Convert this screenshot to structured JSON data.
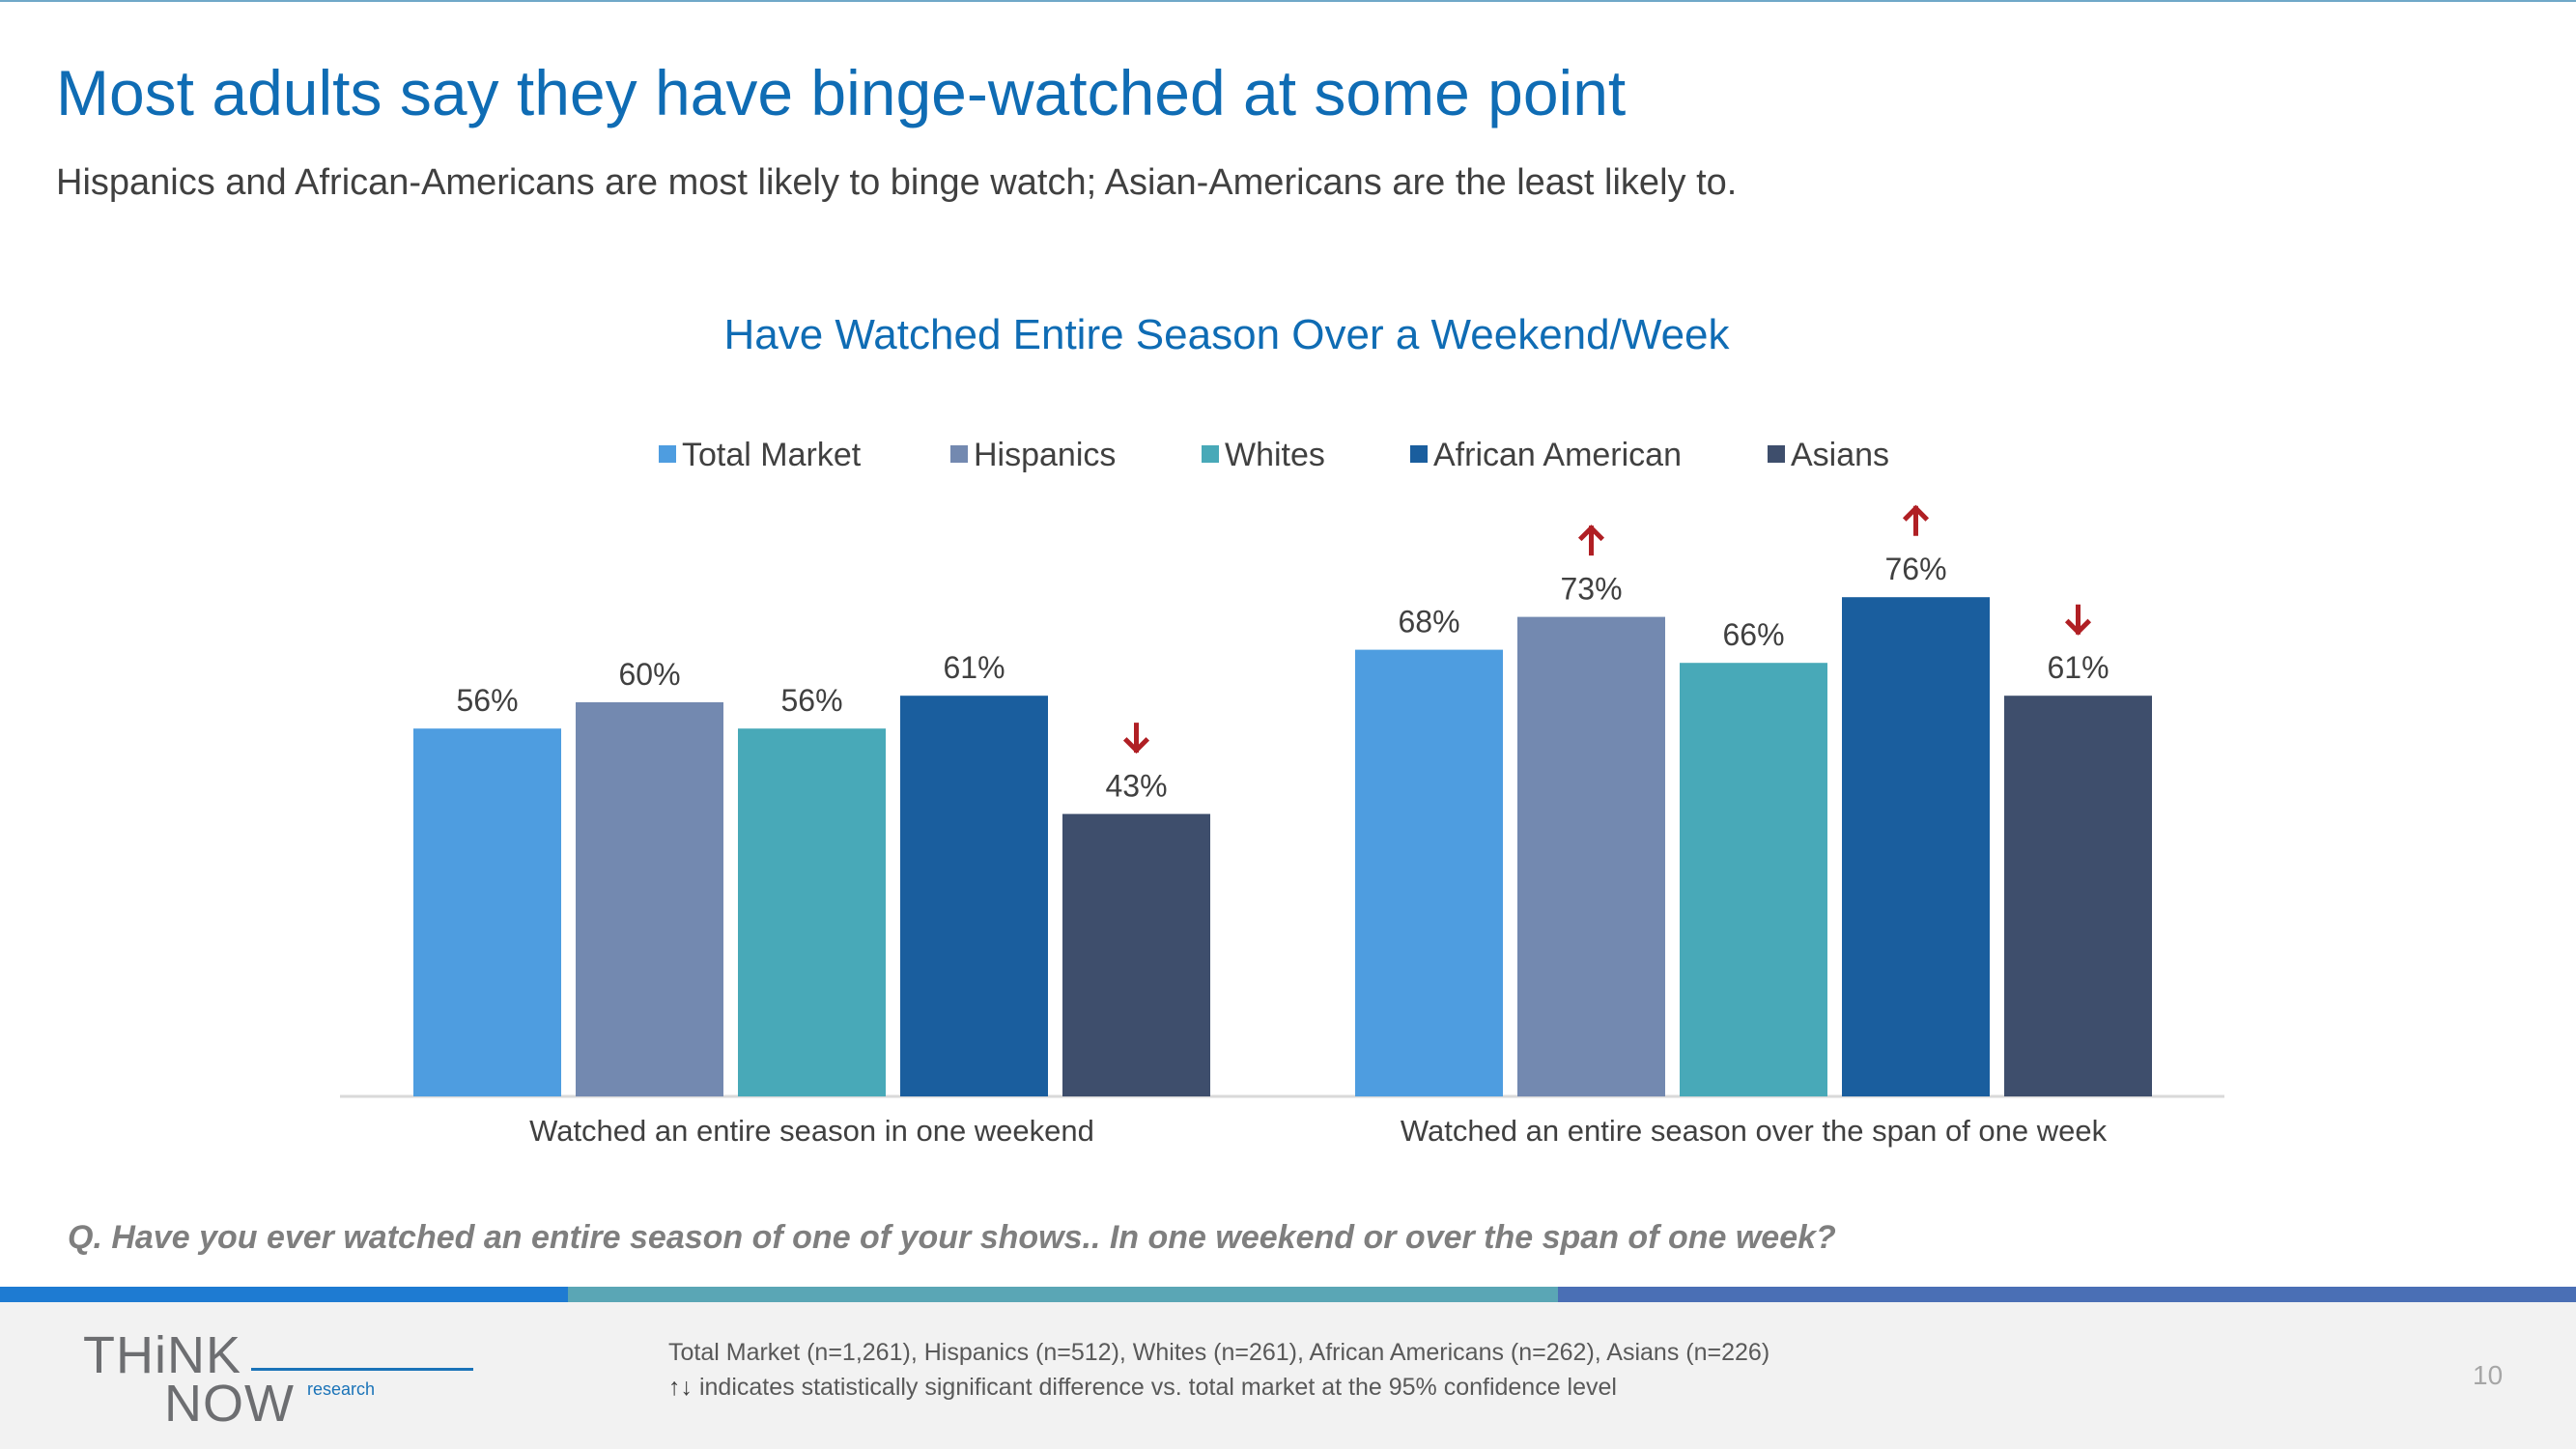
{
  "slide": {
    "title": "Most adults say they have binge-watched at some point",
    "subtitle": "Hispanics and African-Americans are most likely to binge watch; Asian-Americans are the least likely to.",
    "question": "Q. Have you ever watched an entire season of one of your shows.. In one weekend or over the span of one week?",
    "footnote_sample": "Total Market (n=1,261), Hispanics (n=512), Whites (n=261), African Americans (n=262), Asians (n=226)",
    "footnote_arrows": "↑↓",
    "footnote_significance": "indicates statistically significant difference vs. total market at the 95% confidence level",
    "page_number": "10",
    "logo": {
      "think": "THiNK",
      "now": "NOW",
      "research": "research"
    }
  },
  "chart_data": {
    "type": "bar",
    "title": "Have Watched Entire Season Over a Weekend/Week",
    "categories": [
      "Watched an entire season in one weekend",
      "Watched an entire season over the span of one week"
    ],
    "series": [
      {
        "name": "Total Market",
        "values": [
          56,
          68
        ],
        "labels": [
          "56%",
          "68%"
        ],
        "color": "#4e9de0",
        "significance": [
          "",
          ""
        ]
      },
      {
        "name": "Hispanics",
        "values": [
          60,
          73
        ],
        "labels": [
          "60%",
          "73%"
        ],
        "color": "#7389b0",
        "significance": [
          "",
          "up"
        ]
      },
      {
        "name": "Whites",
        "values": [
          56,
          66
        ],
        "labels": [
          "56%",
          "66%"
        ],
        "color": "#48a9b8",
        "significance": [
          "",
          ""
        ]
      },
      {
        "name": "African American",
        "values": [
          61,
          76
        ],
        "labels": [
          "61%",
          "76%"
        ],
        "color": "#1a5e9e",
        "significance": [
          "",
          "up"
        ]
      },
      {
        "name": "Asians",
        "values": [
          43,
          61
        ],
        "labels": [
          "43%",
          "61%"
        ],
        "color": "#3e4e6c",
        "significance": [
          "down",
          "down"
        ]
      }
    ],
    "ylim": [
      0,
      100
    ],
    "grid": false,
    "legend_position": "top",
    "significance_color": "#b01f24"
  },
  "colors": {
    "title": "#0f6cb4",
    "stripe": [
      "#1e7bd2",
      "#5aa6b5",
      "#4a6fb5"
    ]
  }
}
